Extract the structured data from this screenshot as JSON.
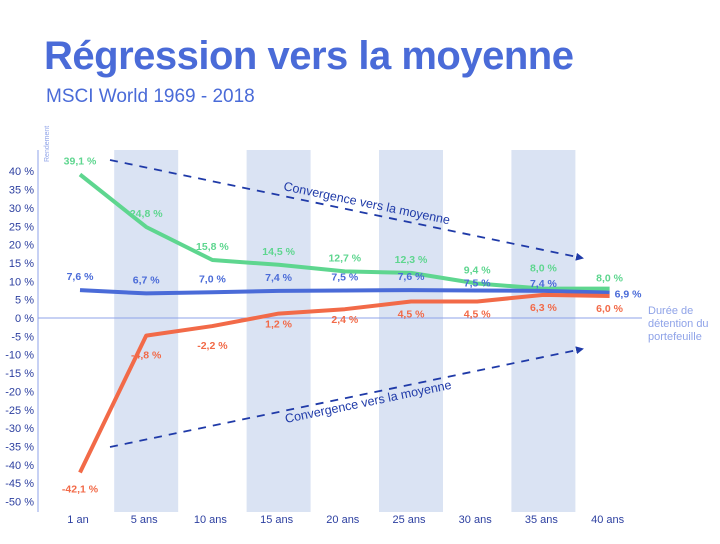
{
  "title": "Régression vers la moyenne",
  "subtitle": "MSCI World 1969 - 2018",
  "chart_data": {
    "type": "line",
    "ylabel": "Rendement",
    "xlabel": "Durée de détention du portefeuille",
    "xlabel_lines": [
      "Durée de",
      "détention du",
      "portefeuille"
    ],
    "categories": [
      "1 an",
      "5 ans",
      "10 ans",
      "15 ans",
      "20 ans",
      "25 ans",
      "30 ans",
      "35 ans",
      "40 ans"
    ],
    "shaded_categories": [
      "5 ans",
      "15 ans",
      "25 ans",
      "35 ans"
    ],
    "ylim": [
      -50,
      40
    ],
    "yticks": [
      40,
      35,
      30,
      25,
      20,
      15,
      10,
      5,
      0,
      -5,
      -10,
      -15,
      -20,
      -25,
      -30,
      -35,
      -40,
      -45,
      -50
    ],
    "series": [
      {
        "key": "max",
        "color": "#5ed68f",
        "values": [
          39.1,
          24.8,
          15.8,
          14.5,
          12.7,
          12.3,
          9.4,
          8.0,
          8.0
        ],
        "labels": [
          "39,1 %",
          "24,8 %",
          "15,8 %",
          "14,5 %",
          "12,7 %",
          "12,3 %",
          "9,4 %",
          "8,0 %",
          "8,0 %"
        ]
      },
      {
        "key": "mean",
        "color": "#4a6bd8",
        "values": [
          7.6,
          6.7,
          7.0,
          7.4,
          7.5,
          7.6,
          7.5,
          7.4,
          6.9
        ],
        "labels": [
          "7,6 %",
          "6,7 %",
          "7,0 %",
          "7,4 %",
          "7,5 %",
          "7,6 %",
          "7,5 %",
          "7,4 %",
          "6,9 %"
        ]
      },
      {
        "key": "min",
        "color": "#f26a48",
        "values": [
          -42.1,
          -4.8,
          -2.2,
          1.2,
          2.4,
          4.5,
          4.5,
          6.3,
          6.0
        ],
        "labels": [
          "-42,1 %",
          "-4,8 %",
          "-2,2 %",
          "1,2 %",
          "2,4 %",
          "4,5 %",
          "4,5 %",
          "6,3 %",
          "6,0 %"
        ]
      }
    ],
    "annotations": [
      "Convergence vers la moyenne",
      "Convergence vers la moyenne"
    ],
    "colors": {
      "axis": "#8fa3e8",
      "tick": "#2c3fa0",
      "band": "#dae3f3",
      "arrow": "#1f3aa8"
    }
  }
}
